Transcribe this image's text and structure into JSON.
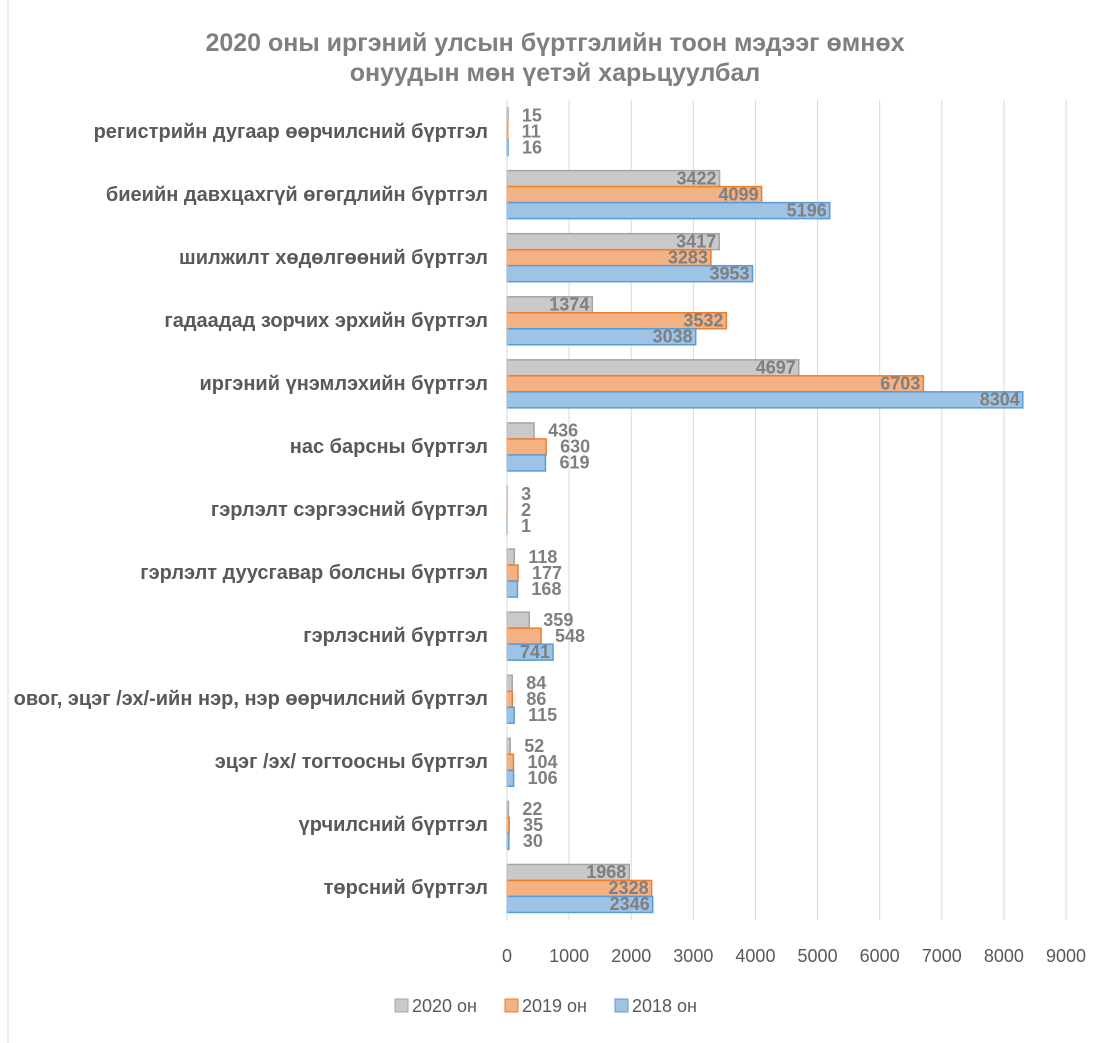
{
  "chart_data": {
    "type": "bar",
    "orientation": "horizontal",
    "title": "2020 оны иргэний улсын бүртгэлийн тоон мэдээг өмнөх онуудын мөн үетэй харьцуулбал",
    "categories": [
      "регистрийн дугаар өөрчилсний бүртгэл",
      "биеийн давхцахгүй өгөгдлийн бүртгэл",
      "шилжилт хөдөлгөөний бүртгэл",
      "гадаадад зорчих эрхийн бүртгэл",
      "иргэний үнэмлэхийн бүртгэл",
      "нас барсны бүртгэл",
      "гэрлэлт сэргээсний бүртгэл",
      "гэрлэлт дуусгавар болсны бүртгэл",
      "гэрлэсний бүртгэл",
      "овог, эцэг /эх/-ийн нэр, нэр өөрчилсний бүртгэл",
      "эцэг /эх/ тогтоосны бүртгэл",
      "үрчилсний бүртгэл",
      "төрсний бүртгэл"
    ],
    "series": [
      {
        "name": "2020 он",
        "color": "#c9c9c9",
        "stroke": "#a5a5a5",
        "values": [
          15,
          3422,
          3417,
          1374,
          4697,
          436,
          3,
          118,
          359,
          84,
          52,
          22,
          1968
        ]
      },
      {
        "name": "2019 он",
        "color": "#f4b183",
        "stroke": "#ed7d31",
        "values": [
          11,
          4099,
          3283,
          3532,
          6703,
          630,
          2,
          177,
          548,
          86,
          104,
          35,
          2328
        ]
      },
      {
        "name": "2018 он",
        "color": "#9dc3e6",
        "stroke": "#5b9bd5",
        "values": [
          16,
          5196,
          3953,
          3038,
          8304,
          619,
          1,
          168,
          741,
          115,
          106,
          30,
          2346
        ]
      }
    ],
    "xlim": [
      0,
      9000
    ],
    "xticks": [
      0,
      1000,
      2000,
      3000,
      4000,
      5000,
      6000,
      7000,
      8000,
      9000
    ],
    "grid": true,
    "legend": "bottom"
  }
}
